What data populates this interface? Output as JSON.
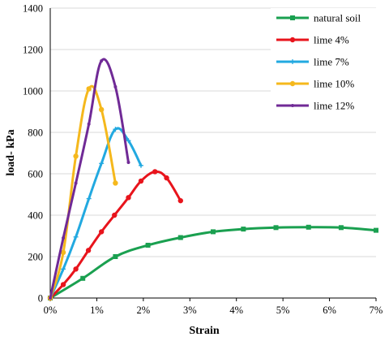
{
  "chart_data": {
    "type": "line",
    "xlabel": "Strain",
    "ylabel": "load- kPa",
    "xlim": [
      0,
      7
    ],
    "ylim": [
      0,
      1400
    ],
    "x_ticks": [
      "0%",
      "1%",
      "2%",
      "3%",
      "4%",
      "5%",
      "6%",
      "7%"
    ],
    "y_ticks": [
      "0",
      "200",
      "400",
      "600",
      "800",
      "1000",
      "1200",
      "1400"
    ],
    "grid": "horizontal",
    "legend_position": "top-right",
    "series": [
      {
        "name": "natural soil",
        "color": "#1aa050",
        "marker": "square",
        "x": [
          0,
          0.7,
          1.4,
          2.1,
          2.8,
          3.5,
          4.15,
          4.85,
          5.55,
          6.25,
          7.0
        ],
        "y": [
          0,
          95,
          200,
          255,
          292,
          320,
          333,
          340,
          342,
          340,
          327
        ]
      },
      {
        "name": "lime 4%",
        "color": "#e8141c",
        "marker": "circle",
        "x": [
          0,
          0.28,
          0.55,
          0.82,
          1.1,
          1.38,
          1.68,
          1.95,
          2.25,
          2.5,
          2.8
        ],
        "y": [
          0,
          65,
          140,
          230,
          320,
          400,
          485,
          565,
          610,
          580,
          470
        ]
      },
      {
        "name": "lime 7%",
        "color": "#22a9e0",
        "marker": "plus",
        "x": [
          0,
          0.28,
          0.55,
          0.83,
          1.1,
          1.4,
          1.68,
          1.95
        ],
        "y": [
          0,
          140,
          295,
          480,
          650,
          815,
          760,
          640
        ]
      },
      {
        "name": "lime 10%",
        "color": "#f5b81c",
        "marker": "circle",
        "x": [
          0,
          0.28,
          0.55,
          0.83,
          1.1,
          1.4
        ],
        "y": [
          0,
          220,
          685,
          1010,
          910,
          555
        ]
      },
      {
        "name": "lime 12%",
        "color": "#702a96",
        "marker": "dash",
        "x": [
          0,
          0.28,
          0.55,
          0.83,
          1.1,
          1.4,
          1.68
        ],
        "y": [
          0,
          290,
          555,
          840,
          1145,
          1020,
          655
        ]
      }
    ]
  }
}
